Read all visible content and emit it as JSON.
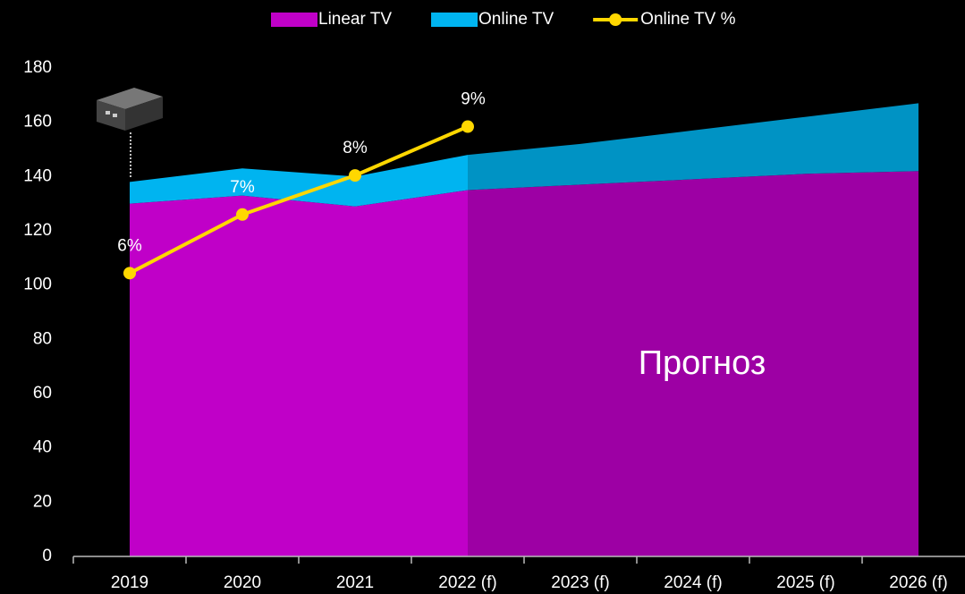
{
  "chart_data": {
    "type": "stacked-area-line",
    "categories": [
      "2019",
      "2020",
      "2021",
      "2022 (f)",
      "2023 (f)",
      "2024 (f)",
      "2025 (f)",
      "2026 (f)"
    ],
    "series": [
      {
        "name": "Linear TV",
        "color": "#c000c8",
        "values": [
          130,
          133,
          129,
          135,
          137,
          139,
          141,
          142
        ]
      },
      {
        "name": "Online TV",
        "color": "#00b4f0",
        "values": [
          8,
          10,
          11,
          13,
          15,
          18,
          21,
          25
        ]
      },
      {
        "name": "Online TV %",
        "color": "#ffd700",
        "axis": "y2",
        "values": [
          5.8,
          7.0,
          7.8,
          8.8,
          null,
          null,
          null,
          null
        ],
        "value_labels": [
          "6%",
          "7%",
          "8%",
          "9%",
          null,
          null,
          null,
          null
        ]
      }
    ],
    "ylim": [
      0,
      180
    ],
    "yticks": [
      0,
      20,
      40,
      60,
      80,
      100,
      120,
      140,
      160,
      180
    ],
    "y2lim": [
      0,
      10
    ],
    "annotation": "Прогноз",
    "legend": "top"
  }
}
